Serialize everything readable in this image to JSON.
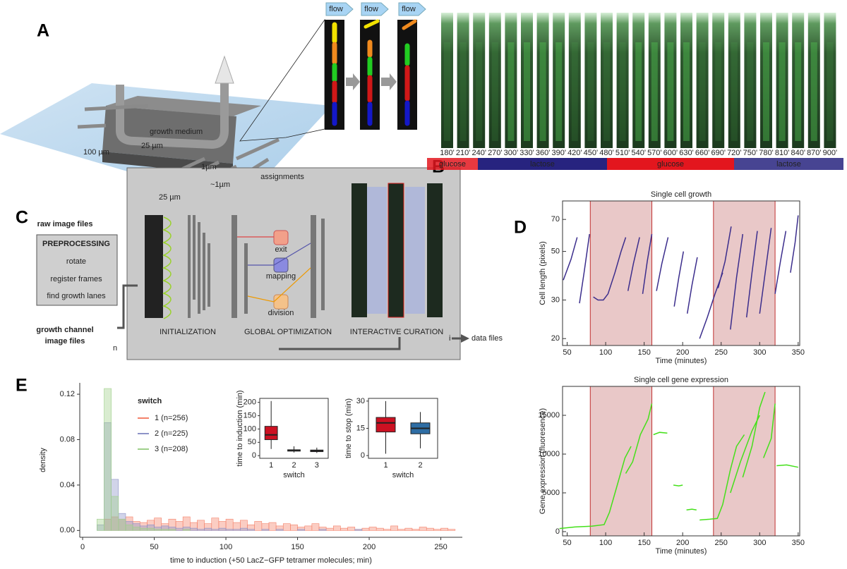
{
  "panel_labels": [
    "A",
    "B",
    "C",
    "D",
    "E"
  ],
  "panel_a": {
    "flow_labels": [
      "flow",
      "flow",
      "flow"
    ],
    "medium": "growth medium",
    "dims": [
      "100 µm",
      "25 µm",
      "25 µm",
      "1µm",
      "~1µm"
    ]
  },
  "panel_b": {
    "times": [
      "180'",
      "210'",
      "240'",
      "270'",
      "300'",
      "330'",
      "360'",
      "390'",
      "420'",
      "450'",
      "480'",
      "510'",
      "540'",
      "570'",
      "600'",
      "630'",
      "660'",
      "690'",
      "720'",
      "750'",
      "780'",
      "810'",
      "840'",
      "870'",
      "900'"
    ],
    "conditions": [
      {
        "label": "glucose",
        "color": "#e3161e"
      },
      {
        "label": "lactose",
        "color": "#27237f"
      },
      {
        "label": "glucose",
        "color": "#e3161e"
      },
      {
        "label": "lactose",
        "color": "#27237f"
      }
    ]
  },
  "panel_c": {
    "raw": "raw image files",
    "pre": "PREPROCESSING",
    "steps": [
      "rotate",
      "register frames",
      "find growth lanes"
    ],
    "channel_lines": [
      "growth channel",
      "image files"
    ],
    "n": "n",
    "assign": "assignments",
    "ops": [
      "exit",
      "mapping",
      "division"
    ],
    "stages": [
      "INITIALIZATION",
      "GLOBAL OPTIMIZATION",
      "INTERACTIVE CURATION"
    ],
    "i": "i",
    "out": "data files"
  },
  "chart_data": [
    {
      "type": "line",
      "title": "Single cell growth",
      "xlabel": "Time (minutes)",
      "ylabel": "Cell length (pixels)",
      "yscale": "log",
      "xlim": [
        44,
        352
      ],
      "ylim": [
        18.6,
        85
      ],
      "xticks": [
        50,
        100,
        150,
        200,
        250,
        300,
        350
      ],
      "yticks": [
        20,
        30,
        50,
        70
      ],
      "shaded": [
        [
          80,
          160
        ],
        [
          240,
          320
        ]
      ],
      "shade_color": "#dba3a3",
      "series": [
        {
          "color": "#3b2d8c",
          "x": [
            45,
            55,
            63,
            null,
            66,
            72,
            79,
            null,
            84,
            90,
            97,
            103,
            112,
            120,
            126,
            null,
            129,
            136,
            144,
            null,
            148,
            154,
            160,
            null,
            166,
            173,
            181,
            null,
            189,
            195,
            201,
            null,
            206,
            212,
            219,
            null,
            222,
            232,
            242,
            252,
            null,
            246,
            255,
            263,
            null,
            262,
            270,
            278,
            null,
            283,
            290,
            297,
            null,
            300,
            308,
            315,
            null,
            320,
            327,
            334,
            null,
            340,
            346,
            350
          ],
          "values": [
            37,
            46,
            58,
            null,
            29,
            40,
            60,
            null,
            31,
            30,
            30,
            32,
            40,
            50,
            58,
            null,
            33,
            44,
            58,
            null,
            32,
            45,
            60,
            null,
            33,
            44,
            58,
            null,
            28,
            38,
            50,
            null,
            26,
            35,
            47,
            null,
            20,
            25,
            32,
            40,
            null,
            34,
            45,
            65,
            null,
            22,
            38,
            60,
            null,
            25,
            40,
            62,
            null,
            26,
            42,
            64,
            null,
            32,
            45,
            62,
            null,
            40,
            55,
            73
          ]
        }
      ]
    },
    {
      "type": "line",
      "title": "Single cell gene expression",
      "xlabel": "Time (minutes)",
      "ylabel": "Gene expression (fluoresence)",
      "xlim": [
        44,
        352
      ],
      "ylim": [
        -545,
        18730
      ],
      "xticks": [
        50,
        100,
        150,
        200,
        250,
        300,
        350
      ],
      "yticks": [
        0,
        5000,
        10000,
        15000
      ],
      "shaded": [
        [
          80,
          160
        ],
        [
          240,
          320
        ]
      ],
      "shade_color": "#dba3a3",
      "series": [
        {
          "color": "#44e01a",
          "x": [
            40,
            60,
            82,
            98,
            105,
            115,
            125,
            133,
            null,
            126,
            135,
            145,
            155,
            160,
            null,
            162,
            170,
            180,
            null,
            188,
            195,
            200,
            null,
            205,
            212,
            218,
            null,
            222,
            235,
            245,
            252,
            262,
            270,
            280,
            null,
            262,
            275,
            290,
            300,
            null,
            278,
            290,
            300,
            307,
            null,
            305,
            315,
            320,
            null,
            322,
            335,
            350
          ],
          "values": [
            400,
            600,
            700,
            900,
            2500,
            6000,
            9500,
            11000,
            null,
            7500,
            9000,
            12500,
            14500,
            16500,
            null,
            12500,
            12800,
            12700,
            null,
            6000,
            5900,
            6000,
            null,
            2800,
            2900,
            2800,
            null,
            1500,
            1600,
            1700,
            3500,
            8000,
            11000,
            12500,
            null,
            5000,
            9000,
            13000,
            15000,
            null,
            7000,
            11000,
            16000,
            18000,
            null,
            9500,
            12000,
            16500,
            null,
            8500,
            8600,
            8300
          ]
        }
      ]
    },
    {
      "type": "histogram",
      "xlabel": "time to induction (+50 LacZ−GFP tetramer molecules; min)",
      "ylabel": "density",
      "legend_title": "switch",
      "xlim": [
        -2,
        265
      ],
      "ylim": [
        -0.006,
        0.13
      ],
      "xticks": [
        0,
        50,
        100,
        150,
        200,
        250
      ],
      "yticks": [
        {
          "value": 0,
          "label": "0.00"
        },
        {
          "value": 0.04,
          "label": "0.04"
        },
        {
          "value": 0.08,
          "label": "0.08"
        },
        {
          "value": 0.12,
          "label": "0.12"
        }
      ],
      "bins": [
        10,
        15,
        20,
        25,
        30,
        35,
        40,
        45,
        50,
        55,
        60,
        65,
        70,
        75,
        80,
        85,
        90,
        95,
        100,
        105,
        110,
        115,
        120,
        125,
        130,
        135,
        140,
        145,
        150,
        155,
        160,
        165,
        170,
        175,
        180,
        185,
        190,
        195,
        200,
        205,
        210,
        215,
        220,
        225,
        230,
        235,
        240,
        245,
        250,
        255,
        260
      ],
      "series": [
        {
          "name": "1 (n=256)",
          "color": "#f4826a",
          "values": [
            0,
            0.01,
            0.012,
            0.01,
            0.012,
            0.008,
            0.007,
            0.009,
            0.011,
            0.006,
            0.01,
            0.008,
            0.012,
            0.007,
            0.009,
            0.006,
            0.011,
            0.008,
            0.01,
            0.007,
            0.009,
            0.005,
            0.008,
            0.006,
            0.007,
            0.004,
            0.006,
            0.005,
            0.003,
            0.004,
            0.006,
            0.003,
            0.002,
            0.004,
            0.002,
            0.003,
            0.001,
            0.002,
            0.003,
            0.002,
            0.001,
            0.004,
            0.001,
            0.002,
            0.001,
            0.003,
            0.002,
            0.001,
            0.002,
            0.001
          ]
        },
        {
          "name": "2 (n=225)",
          "color": "#8d93c8",
          "values": [
            0.005,
            0.095,
            0.045,
            0.015,
            0.008,
            0.006,
            0.004,
            0.005,
            0.003,
            0.004,
            0.003,
            0.002,
            0.003,
            0.002,
            0.001,
            0.002,
            0.001,
            0.002,
            0.001,
            0.001,
            0.002,
            0.001,
            0,
            0.001,
            0,
            0.001,
            0,
            0,
            0.001,
            0,
            0,
            0.001,
            0,
            0,
            0,
            0,
            0.001,
            0,
            0,
            0,
            0,
            0,
            0,
            0,
            0,
            0,
            0,
            0,
            0,
            0
          ]
        },
        {
          "name": "3 (n=208)",
          "color": "#9fd08a",
          "values": [
            0.01,
            0.125,
            0.03,
            0.01,
            0.005,
            0.003,
            0.002,
            0.002,
            0.001,
            0.001,
            0.001,
            0,
            0.001,
            0,
            0,
            0,
            0,
            0,
            0,
            0,
            0,
            0,
            0,
            0,
            0,
            0,
            0,
            0,
            0,
            0,
            0,
            0,
            0,
            0,
            0,
            0,
            0,
            0,
            0,
            0,
            0,
            0,
            0,
            0,
            0,
            0,
            0,
            0,
            0,
            0
          ]
        }
      ]
    },
    {
      "type": "box",
      "ylabel": "time to induction (min)",
      "xlabel": "switch",
      "categories": [
        "1",
        "2",
        "3"
      ],
      "ylim": [
        -10,
        215
      ],
      "yticks": [
        0,
        50,
        100,
        150,
        200
      ],
      "boxes": [
        [
          25,
          60,
          78,
          110,
          205
        ],
        [
          12,
          17,
          20,
          22,
          35
        ],
        [
          10,
          15,
          18,
          21,
          30
        ]
      ],
      "colors": [
        "#cc1122",
        "#cc1122",
        "#cc1122"
      ]
    },
    {
      "type": "box",
      "ylabel": "time to stop (min)",
      "xlabel": "switch",
      "categories": [
        "1",
        "2"
      ],
      "ylim": [
        -1.5,
        31.5
      ],
      "yticks": [
        0,
        15,
        30
      ],
      "boxes": [
        [
          1,
          13,
          18,
          21,
          30
        ],
        [
          4,
          12,
          15,
          18,
          24
        ]
      ],
      "colors": [
        "#cc1122",
        "#2e6da4"
      ]
    }
  ]
}
